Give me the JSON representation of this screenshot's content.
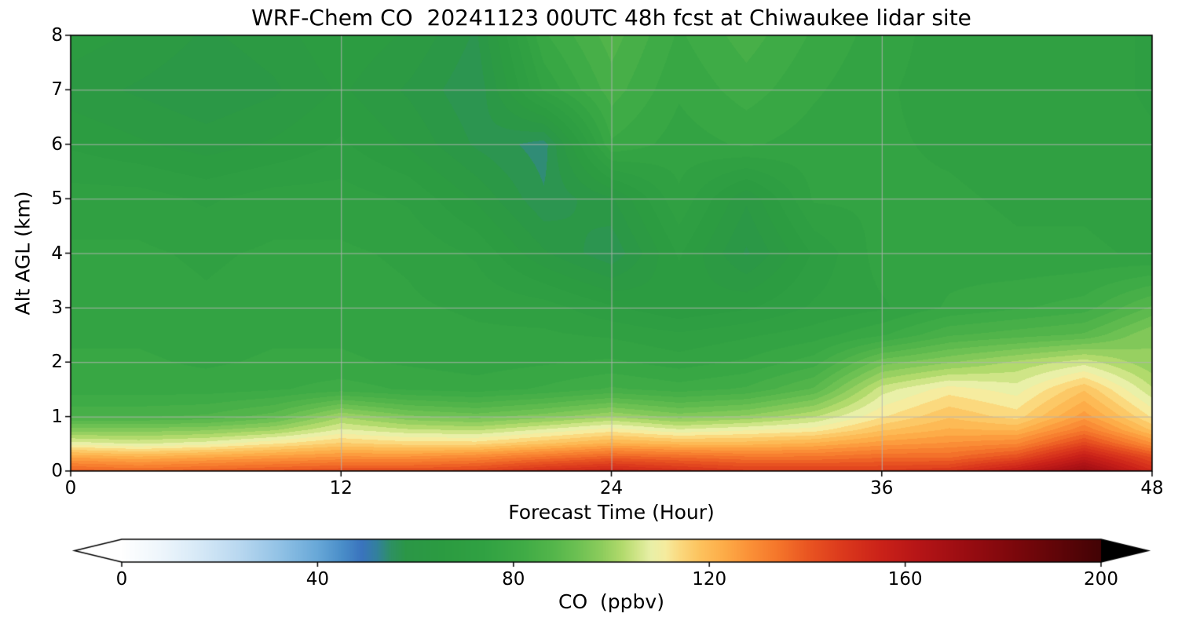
{
  "chart": {
    "title": "WRF-Chem CO  20241123 00UTC 48h fcst at Chiwaukee lidar site",
    "xlabel": "Forecast Time (Hour)",
    "ylabel": "Alt AGL (km)",
    "colorbar_label": "CO  (ppbv)"
  },
  "chart_data": {
    "type": "heatmap",
    "title": "WRF-Chem CO  20241123 00UTC 48h fcst at Chiwaukee lidar site",
    "xlabel": "Forecast Time (Hour)",
    "ylabel": "Alt AGL (km)",
    "xlim": [
      0,
      48
    ],
    "ylim": [
      0,
      8
    ],
    "x_ticks": [
      0,
      12,
      24,
      36,
      48
    ],
    "y_ticks": [
      0,
      1,
      2,
      3,
      4,
      5,
      6,
      7,
      8
    ],
    "grid": true,
    "x_hours": [
      0,
      3,
      6,
      9,
      12,
      15,
      18,
      21,
      24,
      27,
      30,
      33,
      36,
      39,
      42,
      45,
      48
    ],
    "y_km": [
      0,
      0.25,
      0.5,
      0.75,
      1,
      1.5,
      2,
      2.5,
      3,
      4,
      5,
      6,
      7,
      8
    ],
    "values_ppbv": [
      [
        138,
        136,
        138,
        140,
        142,
        142,
        144,
        150,
        154,
        150,
        146,
        146,
        146,
        148,
        158,
        172,
        152
      ],
      [
        124,
        122,
        124,
        126,
        128,
        128,
        130,
        134,
        138,
        136,
        134,
        134,
        136,
        136,
        142,
        158,
        142
      ],
      [
        108,
        106,
        108,
        112,
        116,
        114,
        114,
        118,
        122,
        120,
        120,
        122,
        126,
        128,
        130,
        144,
        128
      ],
      [
        96,
        96,
        97,
        100,
        107,
        104,
        103,
        107,
        111,
        107,
        109,
        111,
        118,
        122,
        121,
        133,
        118
      ],
      [
        85,
        85,
        86,
        90,
        100,
        95,
        93,
        96,
        100,
        96,
        98,
        103,
        112,
        118,
        114,
        126,
        112
      ],
      [
        78,
        78,
        78,
        79,
        81,
        79,
        78,
        80,
        83,
        81,
        83,
        89,
        105,
        111,
        108,
        118,
        104
      ],
      [
        77,
        77,
        76,
        77,
        77,
        76,
        75,
        76,
        77,
        75,
        77,
        81,
        93,
        97,
        101,
        105,
        98
      ],
      [
        76,
        76,
        75,
        76,
        76,
        75,
        74,
        74,
        73,
        71,
        73,
        75,
        79,
        85,
        87,
        89,
        97
      ],
      [
        75,
        75,
        74,
        75,
        75,
        74,
        73,
        72,
        68,
        65,
        67,
        71,
        73,
        77,
        79,
        81,
        89
      ],
      [
        74,
        74,
        73,
        74,
        74,
        73,
        70,
        62,
        56,
        68,
        58,
        68,
        75,
        75,
        74,
        74,
        73
      ],
      [
        72,
        72,
        70,
        72,
        72,
        70,
        64,
        56,
        61,
        73,
        62,
        74,
        74,
        74,
        73,
        73,
        72
      ],
      [
        67,
        65,
        63,
        65,
        68,
        64,
        58,
        54,
        79,
        75,
        77,
        75,
        74,
        73,
        72,
        72,
        71
      ],
      [
        63,
        61,
        59,
        61,
        65,
        61,
        56,
        74,
        84,
        77,
        81,
        77,
        74,
        72,
        72,
        72,
        70
      ],
      [
        66,
        64,
        61,
        63,
        67,
        64,
        58,
        79,
        87,
        79,
        84,
        79,
        75,
        72,
        72,
        72,
        70
      ]
    ],
    "colorbar": {
      "label": "CO  (ppbv)",
      "ticks": [
        0,
        40,
        80,
        120,
        160,
        200
      ],
      "range": [
        0,
        200
      ],
      "extend": "both",
      "under_color": "#ffffff",
      "over_color": "#000000",
      "stops": [
        [
          0,
          "#ffffff"
        ],
        [
          8,
          "#eef6fc"
        ],
        [
          16,
          "#d6e9f7"
        ],
        [
          24,
          "#b9d8f0"
        ],
        [
          32,
          "#93c3e6"
        ],
        [
          40,
          "#68a8d8"
        ],
        [
          45,
          "#4a8ec9"
        ],
        [
          49,
          "#3a74be"
        ],
        [
          52,
          "#33819e"
        ],
        [
          55,
          "#2e9162"
        ],
        [
          58,
          "#2b9747"
        ],
        [
          66,
          "#2c9c41"
        ],
        [
          74,
          "#31a243"
        ],
        [
          82,
          "#40ac46"
        ],
        [
          88,
          "#54b64b"
        ],
        [
          93,
          "#6dc153"
        ],
        [
          98,
          "#8ecd5d"
        ],
        [
          102,
          "#b1da6c"
        ],
        [
          105,
          "#cfe587"
        ],
        [
          108,
          "#e9f0a8"
        ],
        [
          111,
          "#f6ec9f"
        ],
        [
          114,
          "#fbd97e"
        ],
        [
          118,
          "#fdc35e"
        ],
        [
          123,
          "#fdac48"
        ],
        [
          128,
          "#fb9238"
        ],
        [
          134,
          "#f5762b"
        ],
        [
          140,
          "#ea5622"
        ],
        [
          147,
          "#dc3a1d"
        ],
        [
          155,
          "#cb2219"
        ],
        [
          163,
          "#b51517"
        ],
        [
          172,
          "#9b0d12"
        ],
        [
          182,
          "#7d080c"
        ],
        [
          192,
          "#5d0508"
        ],
        [
          200,
          "#420305"
        ]
      ]
    },
    "grid_color": "#b4b4b4"
  }
}
